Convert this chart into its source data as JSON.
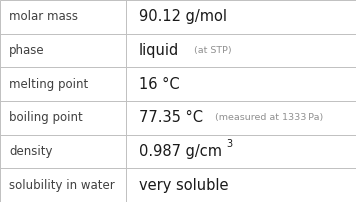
{
  "rows": [
    {
      "label": "molar mass",
      "value": "90.12 g/mol",
      "type": "simple"
    },
    {
      "label": "phase",
      "value": "liquid",
      "type": "phase",
      "annotation": "at STP"
    },
    {
      "label": "melting point",
      "value": "16 °C",
      "type": "simple"
    },
    {
      "label": "boiling point",
      "value": "77.35 °C",
      "type": "boiling",
      "annotation": "measured at 1333 Pa"
    },
    {
      "label": "density",
      "value": "0.987 g/cm",
      "type": "density"
    },
    {
      "label": "solubility in water",
      "value": "very soluble",
      "type": "simple"
    }
  ],
  "col_split": 0.355,
  "bg_color": "#ffffff",
  "border_color": "#c0c0c0",
  "label_color": "#404040",
  "value_color": "#1a1a1a",
  "annotation_color": "#909090",
  "label_fontsize": 8.5,
  "value_fontsize": 10.5,
  "annotation_fontsize": 6.8,
  "superscript_fontsize": 7.0
}
